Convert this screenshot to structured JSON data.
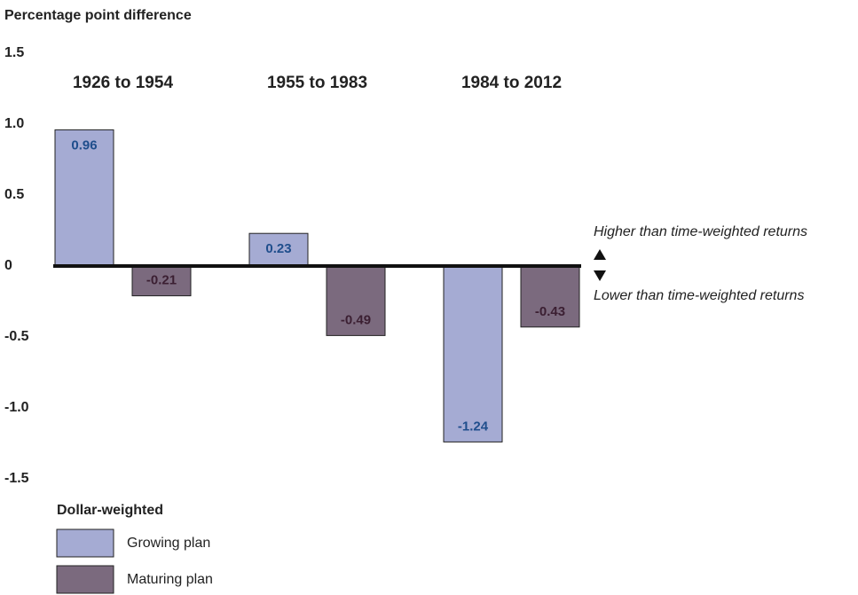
{
  "chart_data": {
    "type": "bar",
    "y_axis_title": "Percentage point difference",
    "categories": [
      "1926 to 1954",
      "1955 to 1983",
      "1984 to 2012"
    ],
    "series": [
      {
        "name": "Growing plan",
        "color": "#a5abd3",
        "label_color": "#1f4e8c",
        "values": [
          0.96,
          0.23,
          -1.24
        ]
      },
      {
        "name": "Maturing plan",
        "color": "#7b6a7e",
        "label_color": "#3b1f32",
        "values": [
          -0.21,
          -0.49,
          -0.43
        ]
      }
    ],
    "ylim": [
      -1.5,
      1.5
    ],
    "yticks": [
      1.5,
      {
        "value": 1,
        "label": "1.0"
      },
      0.5,
      0,
      -0.5,
      {
        "value": -1,
        "label": "-1.0"
      },
      -1.5
    ],
    "legend_title": "Dollar-weighted",
    "annotations": [
      "Higher than time-weighted returns",
      "Lower than time-weighted returns"
    ]
  }
}
